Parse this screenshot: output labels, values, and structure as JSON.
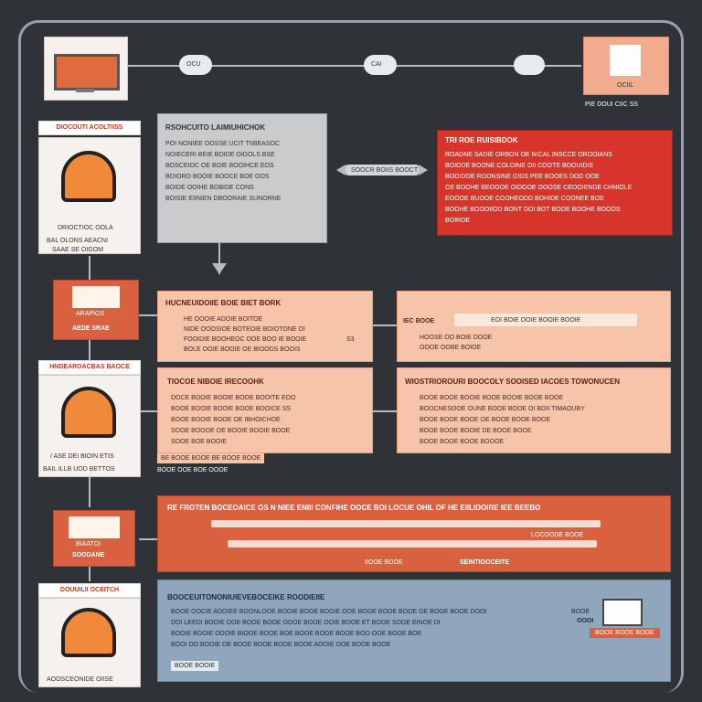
{
  "top": {
    "node1": "OCU",
    "node2": "CAI",
    "right_card_title": "OCIIL",
    "right_card_caption": "PIE DOUI CIIC SS"
  },
  "left_column": [
    {
      "label": "DIOCOUTI ACOLTIISS",
      "caption1": "DRIOCTIOC OOLA",
      "caption2": "BAL OLONS AEACNI",
      "caption3": "SAAE SE OIGOM"
    },
    {
      "label": "ARAPIOS",
      "caption1": "AEDE SRAE"
    },
    {
      "label": "HNDEAROACBAS BAOCE",
      "caption1": "/ ASE DEI BIOIN ETIS",
      "caption2": "BAIL ILLB UOD BETTOS"
    },
    {
      "label": "BIAATOI",
      "caption1": "SOODANE"
    },
    {
      "label": "DOUUILII OCEITCH",
      "caption1": "AOOSCEONIDE OIISE"
    }
  ],
  "gray_panel": {
    "title": "RSOHCUITO LAIMIUHICHOK",
    "lines": [
      "POI NONIEE OOSSE UCIT TIIBEASOC",
      "NOIECERI BEIE BOIDE OIDOLS BSE",
      "BOSCEIOC OE BOIE BOOIHCE EOS",
      "BOIORO BOOIE BOOCE BOE OOS",
      "BOIDE OOIHE BOBIDE CONS",
      "BOISIE EIINIEN DBOORAIE SUNORNE"
    ]
  },
  "connector_label": "SOOCR BOIIS BOOCT",
  "red_panel": {
    "title": "TRI ROE RUISIBDOK",
    "lines": [
      "ROADNE SADIE ORBON OE NICAL INSCCE OROOIANS",
      "BOIODE BOONE COLOINE OII COOTE BOOUIDIE",
      "BOOIDOE ROONSINE OIDS PEE BOOES DOD OOE",
      "OE BOOHE BEOOOE OIDOOE OOOSE CEOOIENDE CHNIOLE",
      "EOOOE BUOOE COOHEODD BOHIDE COONEE BOE",
      "BOOHE BOOOIIOD BONT DOI BOT BOOE BOOHE BOOOS",
      "BOIROE"
    ]
  },
  "mid_panel_left": {
    "title": "HUCNEUIDOIIE BOIE BIET BORK",
    "lines": [
      "HE OOOIE ADOIE BOITOE",
      "NIDE OOOSIOE BOTEOIE BOIOTONE OI",
      "FOOIDIE BOOHEOC OOE BOO IE BOOIE",
      "BOLE OOIE BOOIE OE BIOODS BOOIS"
    ],
    "side": "S3"
  },
  "mid_panel_right": {
    "tag": "IEC BOOE",
    "bar_text": "EOI BOIE OOIE BOOIE BOOIE",
    "lines": [
      "HOOSE OO BOIE DOOE",
      "OOOE OOBE BOIOE"
    ]
  },
  "panel3_left": {
    "title": "TIOCOE NIBOIE IRECOOHK",
    "lines": [
      "DOCE BOOIE BOOIE BOOE BOOITE EOO",
      "BOOE BOOIE BOOIE BOOE BOOICE SS",
      "BOOE BOOIE BOOE OE IBHOICHOE",
      "SOOE BOOOE OE BOOIE BOOIE BOOE",
      "SOOE BOE BOOIE"
    ],
    "footer1": "BE BOOE BOOE BE BOOE BOOE",
    "footer2": "BOOE OOE BOE OOOE"
  },
  "panel3_right": {
    "title": "WIOSTRIOROURI BOOCOLY SOOISED IACOES TOWONUCEN",
    "lines": [
      "BOOE BOOE BOOIE BOOE BOOIE BOOE BOOE",
      "BOOCNESOOE OUNE BOOE BOOE OI BOII TIMAOUBY",
      "BOOE BOOE BOOE OE BOOE BOOE BOOE",
      "BOOE BOOE BOOIE DE BOOE BOOE",
      "BOOE BOOE BOOE BOOOE"
    ]
  },
  "orange_band": {
    "title": "RE FROTEN BOCEOAICE OS N NIEE ENIII CONFIHE OOCE BOI LOCUE OHIL OF HE EIILIDOIRE IEE BEEBO",
    "right_tag": "LOCOODE BOOE",
    "bottom_left": "IIOOE BOOE",
    "bottom_right": "SEINTIOOCEITE"
  },
  "blue_panel": {
    "title": "BOOCEUITONONIUIEVEBOCEIKE ROODIEIIE",
    "lines": [
      "BOOE OOCIE ADOIEE BOONLOOE BOOIE BOOE BOOIE OOE BOOE BOOE BOOE OE BOOE BOOE DOOI",
      "DOI LEEDI BOOIE OOE BOOE BOOE ODOE BOOE OOIE BOOE ET BOOE SOOE EINOE DI",
      "BOOIE BOOIE ODOIE BIOOE BOOE BOE BOOE BOOE BOOE BOO OOE BOOE BOE",
      "BOOI DO BOOIE OE BOOE BOOE BOOE BOOE AOOIE OOE BOOE BOOE"
    ],
    "corner": "BOOE BOOIE",
    "side_small": "BOOE",
    "side_tag": "OOOI",
    "side_button": "BOOE BOOE BOOE"
  },
  "colors": {
    "background": "#2f3236",
    "accent_orange": "#d9613f",
    "accent_red": "#d7352b",
    "peach": "#f6c4a9",
    "steel_blue": "#8fa6bd"
  }
}
